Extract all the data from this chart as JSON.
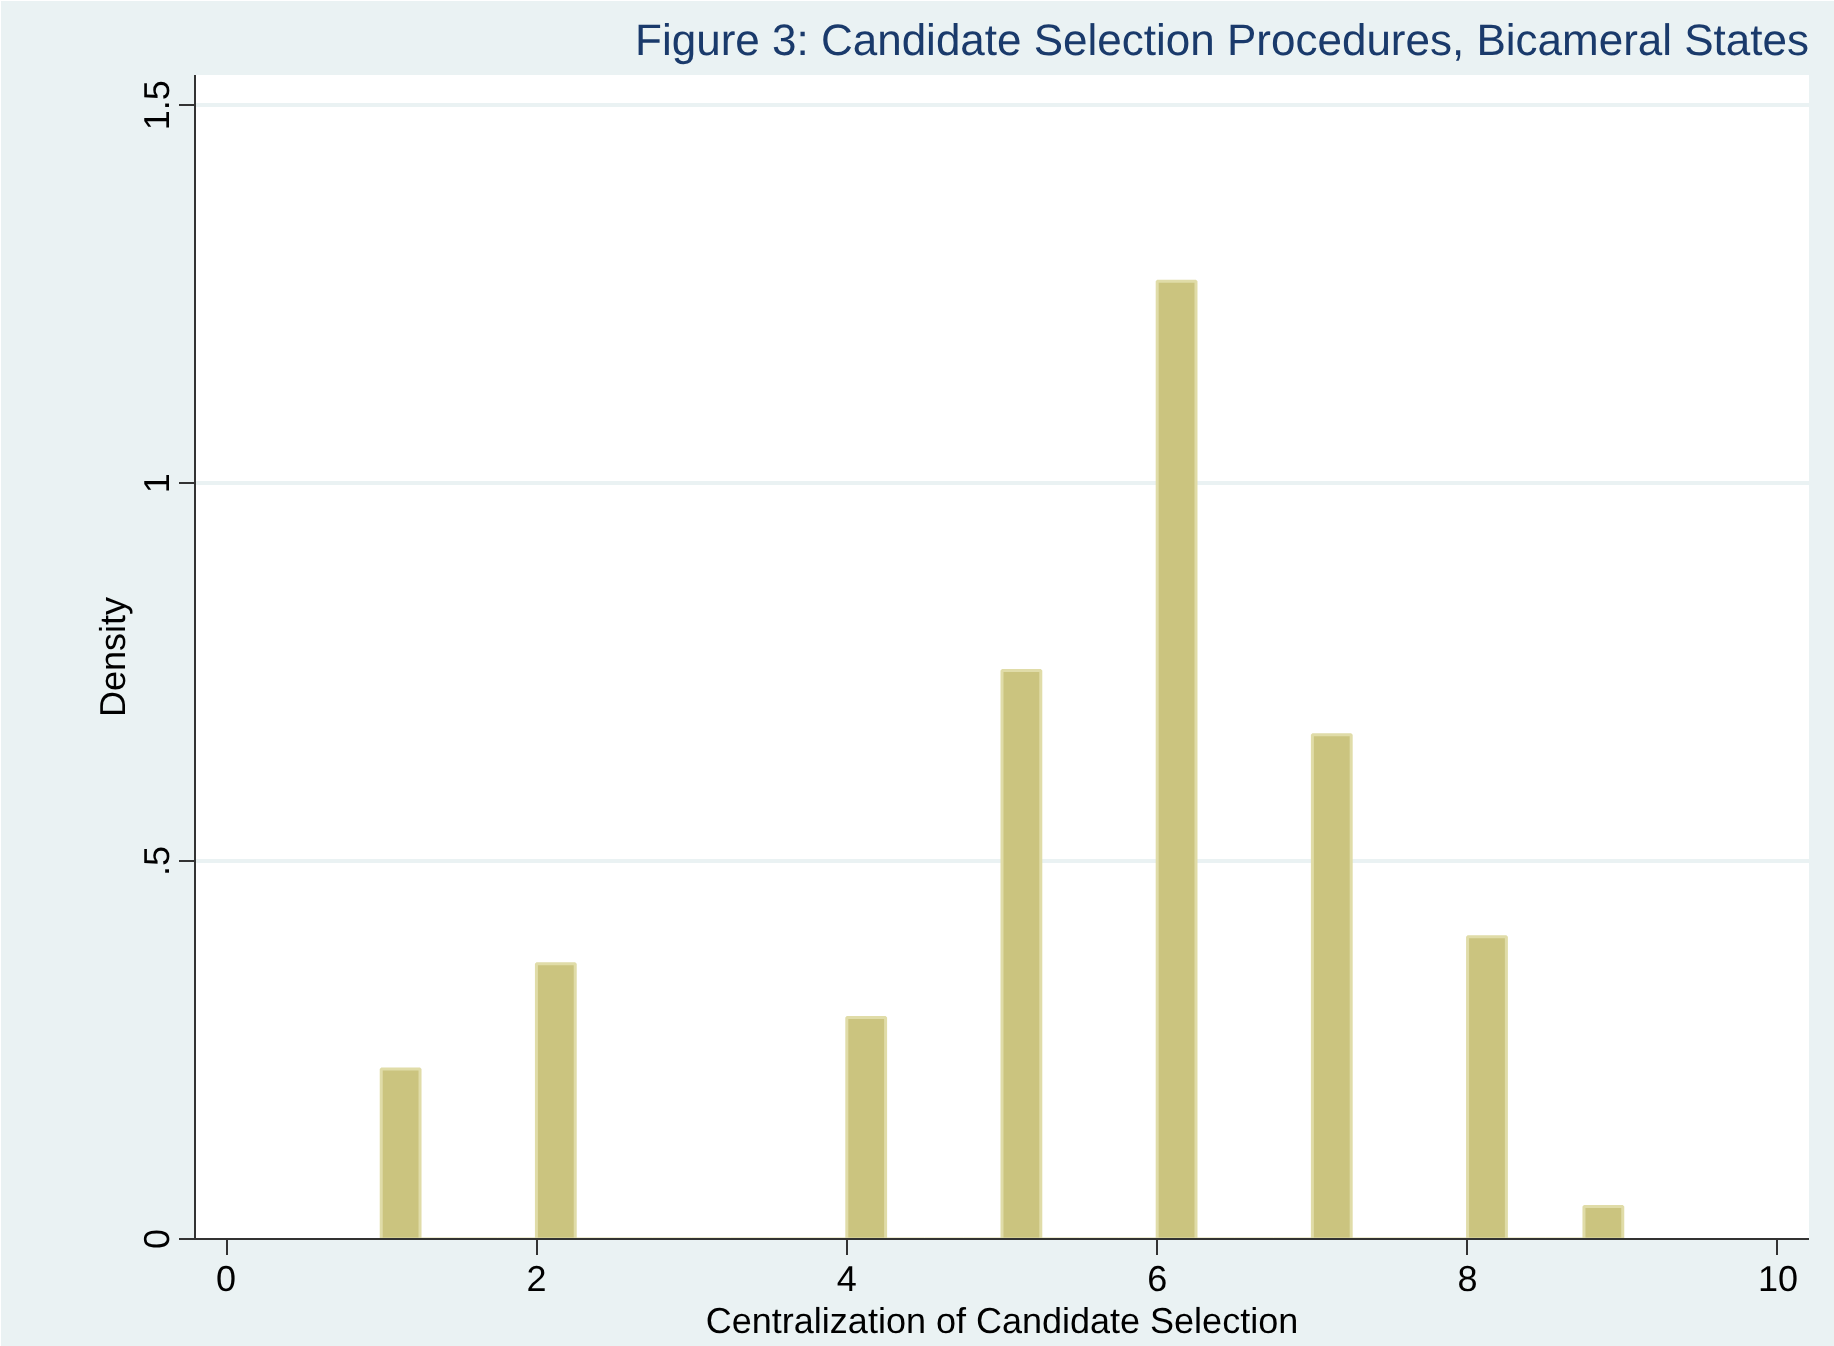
{
  "chart_data": {
    "type": "histogram",
    "title": "Figure 3: Candidate Selection Procedures, Bicameral States",
    "xlabel": "Centralization of Candidate Selection",
    "ylabel": "Density",
    "bins": [
      1,
      1.25,
      1.5,
      1.75,
      2,
      2.25,
      2.5,
      2.75,
      3,
      3.25,
      3.5,
      3.75,
      4,
      4.25,
      4.5,
      4.75,
      5,
      5.25,
      5.5,
      5.75,
      6,
      6.25,
      6.5,
      6.75,
      7,
      7.25,
      7.5,
      7.75,
      8,
      8.25,
      8.5,
      8.75,
      9
    ],
    "values": [
      0.225,
      0,
      0,
      0,
      0.364,
      0,
      0,
      0,
      0,
      0,
      0,
      0,
      0.293,
      0,
      0,
      0,
      0.752,
      0,
      0,
      0,
      1.267,
      0,
      0,
      0,
      0.667,
      0,
      0,
      0,
      0.4,
      0,
      0,
      0.043
    ],
    "color": "#cbc47f",
    "xlim": [
      -0.2,
      10.2
    ],
    "ylim": [
      0,
      1.54
    ],
    "xticks": [
      0,
      2,
      4,
      6,
      8,
      10
    ],
    "yticks": [
      0,
      {
        "value": 0.5,
        "label": ".5"
      },
      1,
      1.5
    ],
    "grid": "y"
  }
}
